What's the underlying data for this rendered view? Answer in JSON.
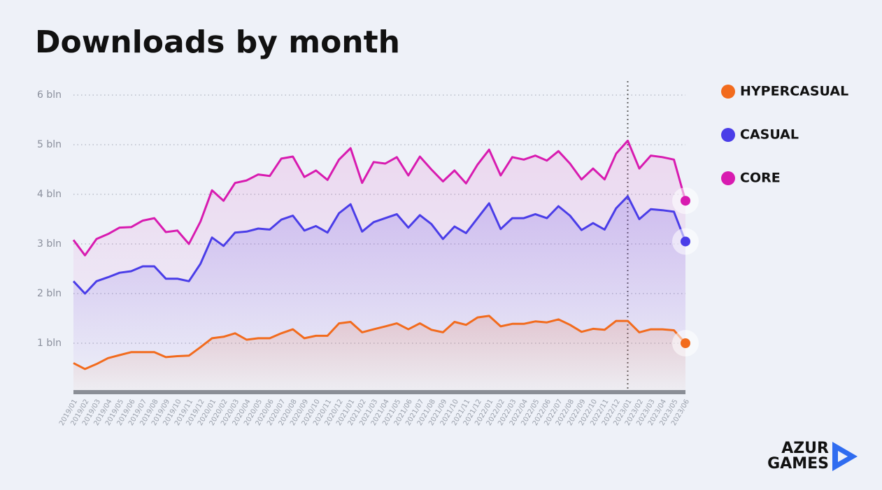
{
  "chart_data": {
    "type": "line",
    "title": "Downloads by month",
    "categories": [
      "2019/01",
      "2019/02",
      "2019/03",
      "2019/04",
      "2019/05",
      "2019/06",
      "2019/07",
      "2019/08",
      "2019/09",
      "2019/10",
      "2019/11",
      "2019/12",
      "2020/01",
      "2020/02",
      "2020/03",
      "2020/04",
      "2020/05",
      "2020/06",
      "2020/07",
      "2020/08",
      "2020/09",
      "2020/10",
      "2020/11",
      "2020/12",
      "2021/01",
      "2021/02",
      "2021/03",
      "2021/04",
      "2021/05",
      "2021/06",
      "2021/07",
      "2021/08",
      "2021/09",
      "2021/10",
      "2021/11",
      "2021/12",
      "2022/01",
      "2022/02",
      "2022/03",
      "2022/04",
      "2022/05",
      "2022/06",
      "2022/07",
      "2022/08",
      "2022/09",
      "2022/10",
      "2022/11",
      "2022/12",
      "2023/01",
      "2023/02",
      "2023/03",
      "2023/04",
      "2023/05",
      "2023/06"
    ],
    "series": [
      {
        "name": "HYPERCASUAL",
        "color": "#f26b1d",
        "values": [
          0.6,
          0.48,
          0.58,
          0.7,
          0.76,
          0.82,
          0.82,
          0.82,
          0.72,
          0.74,
          0.75,
          0.92,
          1.1,
          1.13,
          1.2,
          1.07,
          1.1,
          1.1,
          1.2,
          1.28,
          1.1,
          1.15,
          1.15,
          1.4,
          1.43,
          1.22,
          1.28,
          1.34,
          1.4,
          1.28,
          1.4,
          1.27,
          1.22,
          1.43,
          1.37,
          1.52,
          1.55,
          1.34,
          1.39,
          1.39,
          1.44,
          1.42,
          1.48,
          1.37,
          1.23,
          1.29,
          1.27,
          1.45,
          1.45,
          1.22,
          1.28,
          1.28,
          1.26,
          1.0
        ]
      },
      {
        "name": "CASUAL",
        "color": "#4a3de8",
        "values": [
          2.25,
          2.0,
          2.25,
          2.33,
          2.42,
          2.45,
          2.55,
          2.55,
          2.3,
          2.3,
          2.25,
          2.6,
          3.13,
          2.96,
          3.23,
          3.25,
          3.31,
          3.29,
          3.49,
          3.57,
          3.27,
          3.36,
          3.23,
          3.62,
          3.8,
          3.25,
          3.44,
          3.52,
          3.6,
          3.33,
          3.58,
          3.4,
          3.1,
          3.35,
          3.22,
          3.52,
          3.82,
          3.3,
          3.52,
          3.52,
          3.6,
          3.52,
          3.76,
          3.57,
          3.28,
          3.42,
          3.29,
          3.72,
          3.96,
          3.5,
          3.7,
          3.68,
          3.65,
          3.05
        ]
      },
      {
        "name": "CORE",
        "color": "#d81bb0",
        "values": [
          3.08,
          2.77,
          3.1,
          3.2,
          3.33,
          3.34,
          3.47,
          3.52,
          3.24,
          3.27,
          3.0,
          3.45,
          4.08,
          3.87,
          4.23,
          4.28,
          4.4,
          4.37,
          4.72,
          4.76,
          4.35,
          4.48,
          4.29,
          4.7,
          4.93,
          4.23,
          4.65,
          4.62,
          4.75,
          4.38,
          4.76,
          4.5,
          4.26,
          4.48,
          4.22,
          4.6,
          4.9,
          4.38,
          4.75,
          4.7,
          4.78,
          4.68,
          4.87,
          4.62,
          4.3,
          4.52,
          4.3,
          4.82,
          5.08,
          4.52,
          4.78,
          4.75,
          4.7,
          3.87
        ]
      }
    ],
    "ylim": [
      0,
      6
    ],
    "yticks": [
      {
        "value": 1,
        "label": "1 bln"
      },
      {
        "value": 2,
        "label": "2 bln"
      },
      {
        "value": 3,
        "label": "3 bln"
      },
      {
        "value": 4,
        "label": "4 bln"
      },
      {
        "value": 5,
        "label": "5 bln"
      },
      {
        "value": 6,
        "label": "6 bln"
      }
    ],
    "grid": true,
    "vline_at": "2023/01",
    "legend": "right"
  },
  "logo": [
    "AZUR",
    "GAMES"
  ]
}
